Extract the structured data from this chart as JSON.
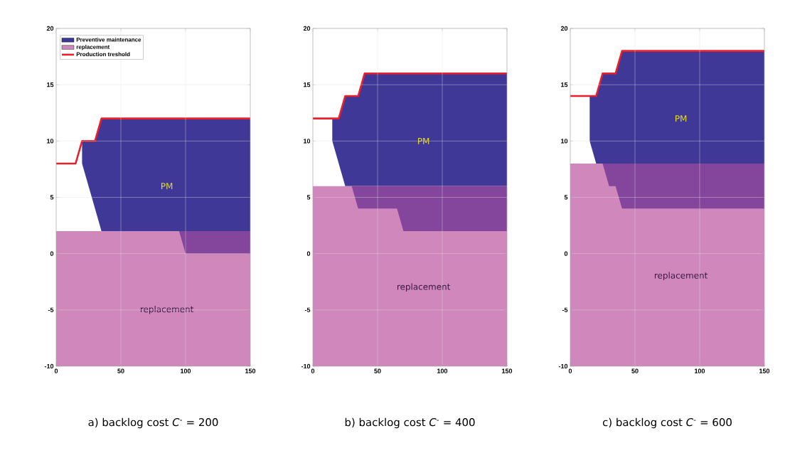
{
  "chart_data": [
    {
      "type": "line",
      "xlabel": "a) backlog cost *C*$^{-}$ = 200",
      "xlim": [
        0,
        150
      ],
      "ylim": [
        -10,
        20
      ],
      "xticks": [
        0,
        50,
        100,
        150
      ],
      "yticks": [
        -10,
        -5,
        0,
        5,
        10,
        15,
        20
      ],
      "grid": true,
      "legend": "top left",
      "series": [
        {
          "type": "line",
          "name": "Preventive maintenance",
          "color": "#3f3896",
          "x": [
            20,
            30,
            35,
            150
          ],
          "values": [
            null,
            null,
            null,
            null
          ],
          "upper": [
            10,
            10,
            12,
            12
          ],
          "lower": [
            8,
            4,
            2,
            2
          ]
        },
        {
          "type": "line",
          "name": "replacement",
          "color": "#d087bb",
          "x": [
            0,
            150
          ],
          "values": [
            null,
            null
          ],
          "upper": [
            2,
            2
          ],
          "lower": [
            -10,
            -10
          ]
        },
        {
          "type": "line",
          "color": "#84459c",
          "x": [
            95,
            100,
            150
          ],
          "values": [
            null,
            null,
            null
          ],
          "upper": [
            2,
            2,
            2
          ],
          "lower": [
            2,
            0,
            0
          ]
        },
        {
          "type": "line",
          "name": "Production treshold",
          "color": "#e8202a",
          "x": [
            0,
            15,
            20,
            30,
            35,
            150
          ],
          "values": [
            8,
            8,
            10,
            10,
            12,
            12
          ]
        }
      ],
      "annotations": [
        "PM",
        "replacement"
      ]
    },
    {
      "type": "line",
      "xlabel": "b) backlog cost *C*$^{-}$ = 400",
      "xlim": [
        0,
        150
      ],
      "ylim": [
        -10,
        20
      ],
      "xticks": [
        0,
        50,
        100,
        150
      ],
      "yticks": [
        -10,
        -5,
        0,
        5,
        10,
        15,
        20
      ],
      "grid": true,
      "series": [
        {
          "type": "line",
          "color": "#3f3896",
          "x": [
            15,
            20,
            25,
            35,
            40,
            150
          ],
          "values": [
            null,
            null,
            null,
            null,
            null,
            null
          ],
          "upper": [
            12,
            12,
            14,
            14,
            16,
            16
          ],
          "lower": [
            10,
            8,
            6,
            6,
            6,
            6
          ]
        },
        {
          "type": "line",
          "color": "#d087bb",
          "x": [
            0,
            150
          ],
          "values": [
            null,
            null
          ],
          "upper": [
            6,
            6
          ],
          "lower": [
            -10,
            -10
          ]
        },
        {
          "type": "line",
          "color": "#84459c",
          "x": [
            30,
            35,
            65,
            70,
            150
          ],
          "values": [
            null,
            null,
            null,
            null,
            null
          ],
          "upper": [
            6,
            6,
            6,
            6,
            6
          ],
          "lower": [
            6,
            4,
            4,
            2,
            2
          ]
        },
        {
          "type": "line",
          "color": "#e8202a",
          "x": [
            0,
            20,
            25,
            35,
            40,
            150
          ],
          "values": [
            12,
            12,
            14,
            14,
            16,
            16
          ]
        }
      ],
      "annotations": [
        "PM",
        "replacement"
      ]
    },
    {
      "type": "line",
      "xlabel": "c) backlog cost *C*$^{-}$ = 600",
      "xlim": [
        0,
        150
      ],
      "ylim": [
        -10,
        20
      ],
      "xticks": [
        0,
        50,
        100,
        150
      ],
      "yticks": [
        -10,
        -5,
        0,
        5,
        10,
        15,
        20
      ],
      "grid": true,
      "series": [
        {
          "type": "line",
          "color": "#3f3896",
          "x": [
            15,
            20,
            25,
            35,
            40,
            150
          ],
          "values": [
            null,
            null,
            null,
            null,
            null,
            null
          ],
          "upper": [
            14,
            14,
            16,
            16,
            18,
            18
          ],
          "lower": [
            10,
            8,
            8,
            8,
            8,
            8
          ]
        },
        {
          "type": "line",
          "color": "#d087bb",
          "x": [
            0,
            150
          ],
          "values": [
            null,
            null
          ],
          "upper": [
            8,
            8
          ],
          "lower": [
            -10,
            -10
          ]
        },
        {
          "type": "line",
          "color": "#84459c",
          "x": [
            25,
            30,
            35,
            40,
            150
          ],
          "values": [
            null,
            null,
            null,
            null,
            null
          ],
          "upper": [
            8,
            8,
            8,
            8,
            8
          ],
          "lower": [
            8,
            6,
            6,
            4,
            4
          ]
        },
        {
          "type": "line",
          "color": "#e8202a",
          "x": [
            0,
            20,
            25,
            35,
            40,
            150
          ],
          "values": [
            14,
            14,
            16,
            16,
            18,
            18
          ]
        }
      ],
      "annotations": [
        "PM",
        "replacement"
      ]
    }
  ]
}
